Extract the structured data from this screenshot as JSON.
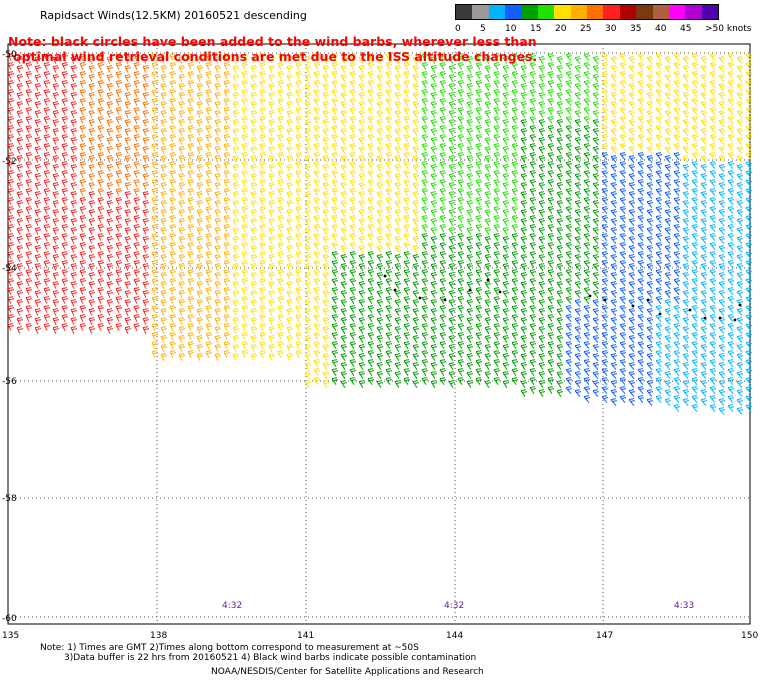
{
  "title": "Rapidsact Winds(12.5KM) 20160521 descending",
  "note_lines": [
    "Note: black circles have been added to the wind barbs, wherever less than",
    "optimal wind retrieval conditions are met due to the ISS altitude changes."
  ],
  "legend": {
    "labels": [
      "0",
      "5",
      "10",
      "15",
      "20",
      "25",
      "30",
      "35",
      "40",
      "45",
      ">50 knots"
    ],
    "colors": [
      "#3a3a3a",
      "#9a9a9a",
      "#00b4ff",
      "#1060ff",
      "#00a000",
      "#20e000",
      "#ffe000",
      "#ffb000",
      "#ff7000",
      "#ff2020",
      "#b00000",
      "#7a3a10",
      "#b06040",
      "#ff00ff",
      "#b000d0",
      "#5000b0"
    ]
  },
  "lat_labels": [
    "-50",
    "-52",
    "-54",
    "-56",
    "-58",
    "-60"
  ],
  "lon_labels": [
    "135",
    "138",
    "141",
    "144",
    "147",
    "150"
  ],
  "time_labels": [
    "4:32",
    "4:32",
    "4:33"
  ],
  "footnote_lines": [
    "Note: 1) Times are GMT 2)Times along bottom correspond to measurement at ~50S",
    "3)Data buffer is 22 hrs from 20160521 4) Black wind barbs indicate possible contamination"
  ],
  "credit": "NOAA/NESDIS/Center for Satellite Applications and Research"
}
